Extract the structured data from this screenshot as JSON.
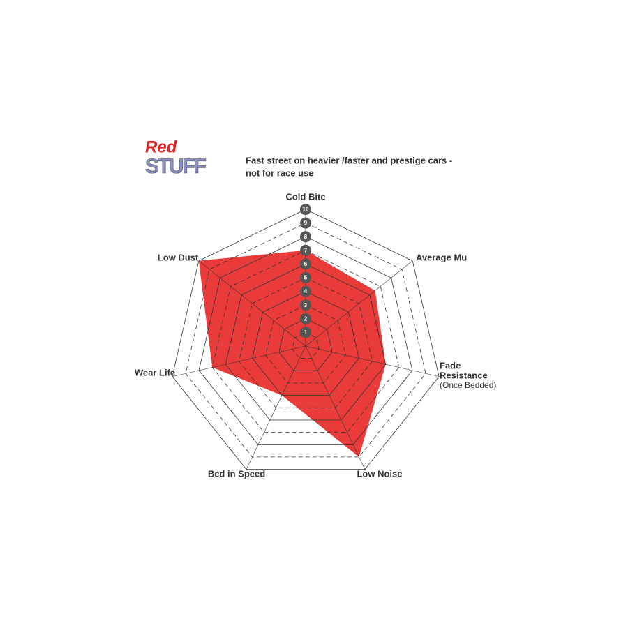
{
  "chart_data": {
    "type": "radar",
    "logo": [
      "Red",
      "STUFF"
    ],
    "title": [
      "Fast street on heavier /faster and prestige cars -",
      "not for race use"
    ],
    "categories": [
      [
        "Cold Bite"
      ],
      [
        "Average Mu"
      ],
      [
        "Fade",
        "Resistance",
        "(Once Bedded)"
      ],
      [
        "Low Noise"
      ],
      [
        "Bed in Speed"
      ],
      [
        "Wear Life"
      ],
      [
        "Low Dust"
      ]
    ],
    "values": [
      7,
      6.5,
      6,
      9,
      4,
      7,
      10
    ],
    "color": "#e8302e",
    "rlim": [
      0,
      10
    ],
    "rticks": [
      1,
      2,
      3,
      4,
      5,
      6,
      7,
      8,
      9,
      10
    ],
    "grid": true
  }
}
